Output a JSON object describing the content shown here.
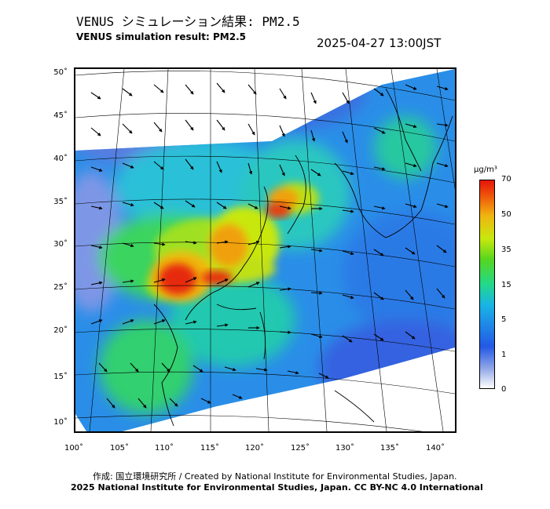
{
  "header": {
    "title_jp": "VENUS シミュレーション結果: PM2.5",
    "title_en": "VENUS simulation result: PM2.5",
    "timestamp": "2025-04-27 13:00JST"
  },
  "map": {
    "lat_labels": [
      "50˚",
      "45˚",
      "40˚",
      "35˚",
      "30˚",
      "25˚",
      "20˚",
      "15˚",
      "10˚"
    ],
    "lon_labels": [
      "100˚",
      "105˚",
      "110˚",
      "115˚",
      "120˚",
      "125˚",
      "130˚",
      "135˚",
      "140˚"
    ],
    "field": "PM2.5 concentration with wind vectors",
    "hotspots": [
      "Southern China near 25N 110E",
      "Coastal China near 27N 116E",
      "Korea / Yellow Sea near 33N 122E"
    ]
  },
  "colorbar": {
    "unit": "μg/m³",
    "ticks": [
      "70",
      "50",
      "35",
      "15",
      "5",
      "1",
      "0"
    ],
    "colors": [
      "#e6140a",
      "#f05a0a",
      "#f0b510",
      "#c8e80f",
      "#57d61e",
      "#22d98a",
      "#19b4e6",
      "#2458e6",
      "#8ba3e6",
      "#ffffff"
    ]
  },
  "footer": {
    "credit_line1": "作成: 国立環境研究所 / Created by National Institute for Environmental Studies, Japan.",
    "credit_line2": "2025 National Institute for Environmental Studies, Japan. CC BY-NC 4.0 International"
  }
}
